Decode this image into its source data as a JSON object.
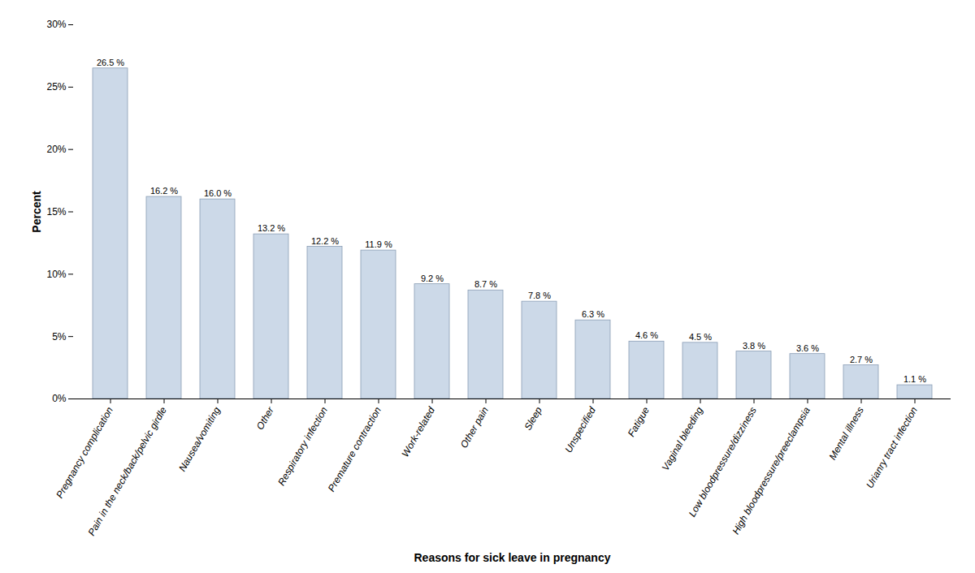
{
  "chart_data": {
    "type": "bar",
    "categories": [
      "Pregnancy complication",
      "Pain in the neck/back/pelvic girdle",
      "Nausea/vomiting",
      "Other",
      "Respiratory infection",
      "Premature contraction",
      "Work-related",
      "Other pain",
      "Sleep",
      "Unspecified",
      "Fatigue",
      "Vaginal bleeding",
      "Low bloodpressure/dizziness",
      "High bloodpressure/preeclampsia",
      "Mental illness",
      "Urianry tract infection"
    ],
    "values": [
      26.5,
      16.2,
      16.0,
      13.2,
      12.2,
      11.9,
      9.2,
      8.7,
      7.8,
      6.3,
      4.6,
      4.5,
      3.8,
      3.6,
      2.7,
      1.1
    ],
    "value_labels": [
      "26.5 %",
      "16.2 %",
      "16.0 %",
      "13.2 %",
      "12.2 %",
      "11.9 %",
      "9.2 %",
      "8.7 %",
      "7.8 %",
      "6.3 %",
      "4.6 %",
      "4.5 %",
      "3.8 %",
      "3.6 %",
      "2.7 %",
      "1.1 %"
    ],
    "data_labels": true,
    "color": "#ccd9e8",
    "xlabel": "Reasons for sick leave in pregnancy",
    "ylabel": "Percent",
    "ylim": [
      0,
      30
    ],
    "yticks": [
      {
        "value": 0,
        "label": "0%"
      },
      {
        "value": 5,
        "label": "5%"
      },
      {
        "value": 10,
        "label": "10%"
      },
      {
        "value": 15,
        "label": "15%"
      },
      {
        "value": 20,
        "label": "20%"
      },
      {
        "value": 25,
        "label": "25%"
      },
      {
        "value": 30,
        "label": "30%"
      }
    ],
    "grid": false
  }
}
